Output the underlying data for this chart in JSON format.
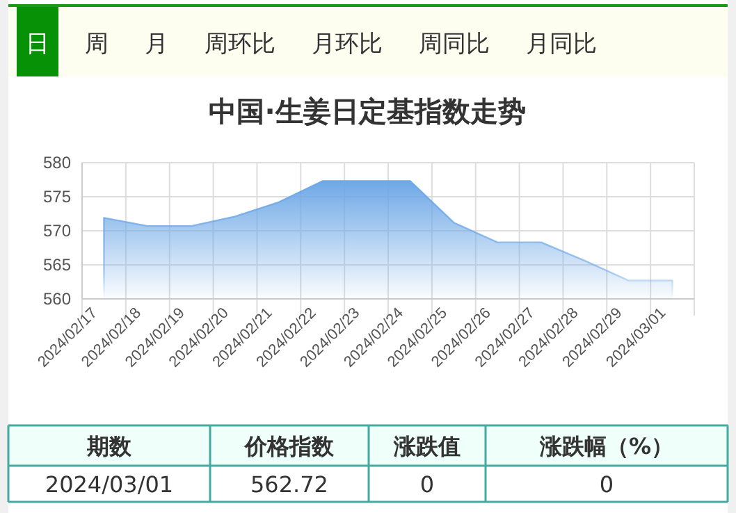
{
  "chart_data": [
    {
      "type": "area",
      "title": "中国·生姜日定基指数走势",
      "categories": [
        "2024/02/17",
        "2024/02/18",
        "2024/02/19",
        "2024/02/20",
        "2024/02/21",
        "2024/02/22",
        "2024/02/23",
        "2024/02/24",
        "2024/02/25",
        "2024/02/26",
        "2024/02/27",
        "2024/02/28",
        "2024/02/29",
        "2024/03/01"
      ],
      "series": [
        {
          "color": "#6ea8e6",
          "values": [
            571.9,
            570.7,
            570.7,
            572.1,
            574.2,
            577.3,
            577.3,
            577.3,
            571.2,
            568.3,
            568.3,
            565.6,
            562.7,
            562.72
          ]
        }
      ],
      "ylim": [
        560,
        580
      ],
      "yticks": [
        560,
        565,
        570,
        575,
        580
      ],
      "grid": true,
      "annotations": [
        "日",
        "周",
        "月",
        "周环比",
        "月环比",
        "周同比",
        "月同比"
      ]
    },
    {
      "type": "other",
      "annotations": [
        "期数",
        "价格指数",
        "涨跌值",
        "涨跌幅（%）",
        "2024/03/01",
        "562.72",
        "0",
        "0"
      ]
    }
  ]
}
